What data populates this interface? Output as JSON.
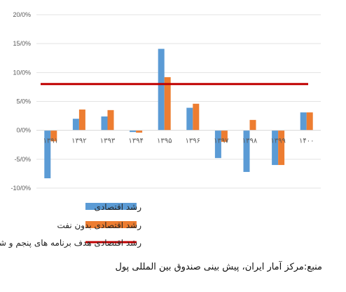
{
  "chart_data": {
    "type": "bar",
    "categories": [
      "۱۳۹۱",
      "۱۳۹۲",
      "۱۳۹۳",
      "۱۳۹۴",
      "۱۳۹۵",
      "۱۳۹۶",
      "۱۳۹۷",
      "۱۳۹۸",
      "۱۳۹۹",
      "۱۴۰۰"
    ],
    "series": [
      {
        "name": "رشد اقتصادی",
        "color": "#5b9bd5",
        "values": [
          -8.3,
          2.0,
          2.4,
          -0.3,
          14.1,
          3.9,
          -4.8,
          -7.2,
          -6.0,
          3.1
        ]
      },
      {
        "name": "رشد اقتصادی بدون نفت",
        "color": "#ed7d31",
        "values": [
          -1.9,
          3.6,
          3.5,
          -0.4,
          9.2,
          4.6,
          -2.0,
          1.8,
          -6.0,
          3.1
        ]
      }
    ],
    "target_line": {
      "name": "رشد اقتصادی هدف برنامه های پنجم و ششم",
      "value": 8.0,
      "color": "#c00000"
    },
    "ylim": [
      -10,
      20
    ],
    "yticks": [
      "20/0%",
      "15/0%",
      "10/0%",
      "5/0%",
      "0/0%",
      "-5/0%",
      "-10/0%"
    ],
    "ytick_values": [
      20,
      15,
      10,
      5,
      0,
      -5,
      -10
    ],
    "grid": true,
    "legend_position": "bottom",
    "title": "",
    "xlabel": "",
    "ylabel": ""
  },
  "source": "منبع:مرکز آمار ایران، پیش بینی صندوق بین المللی پول"
}
